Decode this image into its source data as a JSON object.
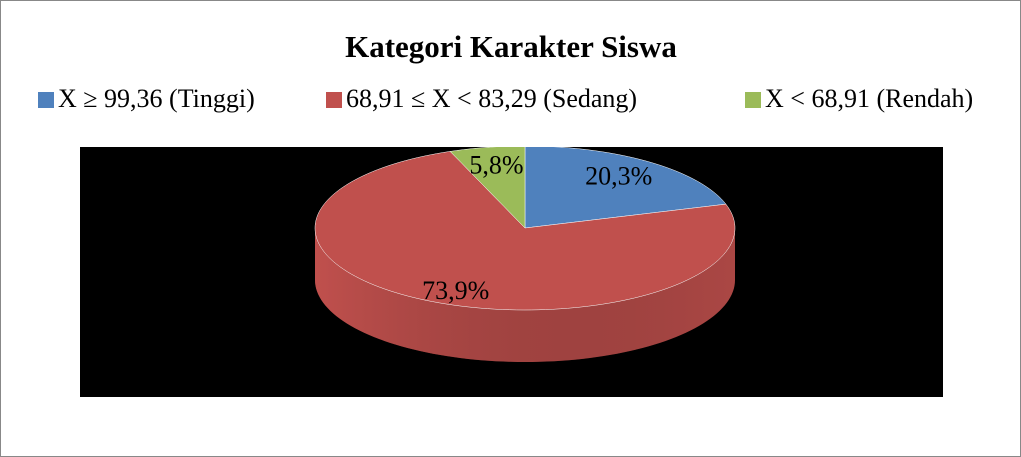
{
  "chart_data": {
    "type": "pie",
    "title": "Kategori Karakter Siswa",
    "categories": [
      "X ≥ 99,36 (Tinggi)",
      "68,91 ≤ X < 83,29 (Sedang)",
      "X < 68,91 (Rendah)"
    ],
    "values": [
      20.3,
      73.9,
      5.8
    ],
    "value_labels": [
      "20,3%",
      "73,9%",
      "5,8%"
    ],
    "colors": [
      "#4f81bd",
      "#c0504d",
      "#9bbb59"
    ],
    "legend": "top"
  }
}
